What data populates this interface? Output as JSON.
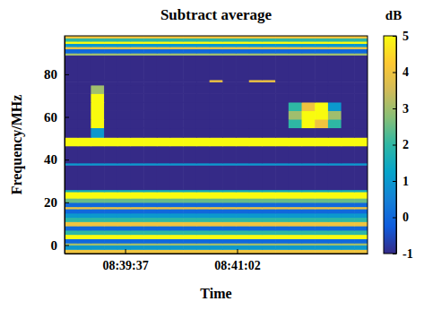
{
  "chart_data": {
    "type": "heatmap",
    "title": "Subtract average",
    "xlabel": "Time",
    "ylabel": "Frequency/MHz",
    "xlim": [
      "08:38:51",
      "08:42:41"
    ],
    "xticks": [
      "08:39:37",
      "08:41:02"
    ],
    "ylim": [
      -4,
      98
    ],
    "yticks": [
      0,
      20,
      40,
      60,
      80
    ],
    "x": [
      "08:38:51",
      "08:39:01",
      "08:39:11",
      "08:39:21",
      "08:39:31",
      "08:39:41",
      "08:39:51",
      "08:40:01",
      "08:40:11",
      "08:40:21",
      "08:40:31",
      "08:40:41",
      "08:40:51",
      "08:41:01",
      "08:41:11",
      "08:41:21",
      "08:41:31",
      "08:41:41",
      "08:41:51",
      "08:42:01",
      "08:42:11",
      "08:42:21",
      "08:42:31"
    ],
    "y": [
      -4,
      -2,
      0,
      1,
      3,
      5,
      7,
      9,
      11,
      13,
      15,
      17,
      18,
      20,
      22,
      25,
      26,
      37.5,
      38.5,
      46.5,
      50.5,
      55,
      59,
      63,
      67,
      71,
      75,
      76.5,
      77.5,
      89,
      90,
      92,
      93,
      94.5,
      95.5,
      97
    ],
    "cells": [
      [
        4,
        4,
        4,
        4,
        4,
        4,
        4,
        4,
        4,
        4,
        4,
        4,
        4,
        4,
        4,
        4,
        4,
        4,
        4,
        4,
        4,
        4,
        4
      ],
      [
        1,
        1,
        1,
        1,
        1,
        1,
        1,
        1,
        1,
        1,
        1,
        1,
        1,
        1,
        1,
        1,
        1,
        1,
        1,
        1,
        1,
        1,
        1
      ],
      [
        3,
        3,
        3,
        3,
        3,
        3,
        3,
        3,
        3,
        3,
        3,
        3,
        3,
        3,
        3,
        3,
        3,
        3,
        3,
        3,
        3,
        3,
        3
      ],
      [
        0,
        0,
        0,
        0,
        0,
        0,
        0,
        0,
        0,
        0,
        0,
        0,
        0,
        0,
        0,
        0,
        0,
        0,
        0,
        0,
        0,
        0,
        0
      ],
      [
        5,
        5,
        5,
        5,
        5,
        5,
        5,
        5,
        5,
        5,
        5,
        5,
        5,
        5,
        5,
        5,
        5,
        5,
        5,
        5,
        5,
        5,
        5
      ],
      [
        2,
        2,
        2,
        2,
        2,
        2,
        2,
        2,
        2,
        2,
        2,
        2,
        2,
        2,
        2,
        2,
        2,
        2,
        2,
        2,
        2,
        2,
        2
      ],
      [
        0,
        0,
        0,
        0,
        0,
        0,
        0,
        0,
        0,
        0,
        0,
        0,
        0,
        0,
        0,
        0,
        0,
        0,
        0,
        0,
        0,
        0,
        0
      ],
      [
        4,
        4,
        4,
        4,
        4,
        4,
        4,
        4,
        4,
        4,
        4,
        4,
        4,
        4,
        4,
        4,
        4,
        4,
        4,
        4,
        4,
        4,
        4
      ],
      [
        2,
        2,
        2,
        2,
        2,
        2,
        2,
        2,
        2,
        2,
        2,
        2,
        2,
        2,
        2,
        2,
        2,
        2,
        2,
        2,
        2,
        2,
        2
      ],
      [
        1,
        1,
        1,
        1,
        1,
        1,
        1,
        1,
        1,
        1,
        1,
        1,
        1,
        1,
        1,
        1,
        1,
        1,
        1,
        1,
        1,
        1,
        1
      ],
      [
        0,
        0,
        0,
        0,
        0,
        0,
        0,
        0,
        0,
        0,
        0,
        0,
        0,
        0,
        0,
        0,
        0,
        0,
        0,
        0,
        0,
        0,
        0
      ],
      [
        4,
        4,
        4,
        4,
        4,
        4,
        4,
        4,
        4,
        4,
        4,
        4,
        4,
        4,
        4,
        4,
        4,
        4,
        4,
        4,
        4,
        4,
        4
      ],
      [
        0,
        0,
        0,
        0,
        0,
        0,
        0,
        0,
        0,
        0,
        0,
        0,
        0,
        0,
        0,
        0,
        0,
        0,
        0,
        0,
        0,
        0,
        0
      ],
      [
        2.5,
        2.5,
        2.5,
        2.5,
        2.5,
        2.5,
        2.5,
        2.5,
        2.5,
        2.5,
        2.5,
        2.5,
        2.5,
        2.5,
        2.5,
        2.5,
        2.5,
        2.5,
        2.5,
        2.5,
        2.5,
        2.5,
        2.5
      ],
      [
        5,
        5,
        5,
        5,
        5,
        5,
        5,
        5,
        5,
        5,
        5,
        5,
        5,
        5,
        5,
        5,
        5,
        5,
        5,
        5,
        5,
        5,
        5
      ],
      [
        1.5,
        1.5,
        1.5,
        1.5,
        1.5,
        1.5,
        1.5,
        1.5,
        1.5,
        1.5,
        1.5,
        1.5,
        1.5,
        1.5,
        1.5,
        1.5,
        1.5,
        1.5,
        1.5,
        1.5,
        1.5,
        1.5,
        1.5
      ],
      [
        -1,
        -1,
        -1,
        -1,
        -1,
        -1,
        -1,
        -1,
        -1,
        -1,
        -1,
        -1,
        -1,
        -1,
        -1,
        -1,
        -1,
        -1,
        -1,
        -1,
        -1,
        -1,
        -1
      ],
      [
        1,
        1,
        1,
        1,
        1,
        1,
        1,
        1,
        1,
        1,
        1,
        1,
        1,
        1,
        1,
        1,
        1,
        1,
        1,
        1,
        1,
        1,
        1
      ],
      [
        -1,
        -1,
        -1,
        -1,
        -1,
        -1,
        -1,
        -1,
        -1,
        -1,
        -1,
        -1,
        -1,
        -1,
        -1,
        -1,
        -1,
        -1,
        -1,
        -1,
        -1,
        -1,
        -1
      ],
      [
        5,
        5,
        5,
        5,
        5,
        5,
        5,
        5,
        5,
        5,
        5,
        5,
        5,
        5,
        5,
        5,
        5,
        5,
        5,
        5,
        5,
        5,
        5
      ],
      [
        -1,
        -1,
        1,
        -1,
        -1,
        -1,
        -1,
        -1,
        -1,
        -1,
        -1,
        -1,
        -1,
        -1,
        -1,
        -1,
        -1,
        -1,
        -1,
        -1,
        -1,
        -1,
        -1
      ],
      [
        -1,
        -1,
        5,
        -1,
        -1,
        -1,
        -1,
        -1,
        -1,
        -1,
        -1,
        -1,
        -1,
        -1,
        -1,
        -1,
        -1,
        2,
        5,
        4,
        2,
        -1,
        -1
      ],
      [
        -1,
        -1,
        5,
        -1,
        -1,
        -1,
        -1,
        -1,
        -1,
        -1,
        -1,
        -1,
        -1,
        -1,
        -1,
        -1,
        -1,
        3,
        5,
        5,
        3,
        -1,
        -1
      ],
      [
        -1,
        -1,
        5,
        -1,
        -1,
        -1,
        -1,
        -1,
        -1,
        -1,
        -1,
        -1,
        -1,
        -1,
        -1,
        -1,
        -1,
        2,
        4,
        5,
        1,
        -1,
        -1
      ],
      [
        -1,
        -1,
        5,
        -1,
        -1,
        -1,
        -1,
        -1,
        -1,
        -1,
        -1,
        -1,
        -1,
        -1,
        -1,
        -1,
        -1,
        -1,
        -1,
        -1,
        -1,
        -1,
        -1
      ],
      [
        -1,
        -1,
        3,
        -1,
        -1,
        -1,
        -1,
        -1,
        -1,
        -1,
        -1,
        -1,
        -1,
        -1,
        -1,
        -1,
        -1,
        -1,
        -1,
        -1,
        -1,
        -1,
        -1
      ],
      [
        -1,
        -1,
        -1,
        -1,
        -1,
        -1,
        -1,
        -1,
        -1,
        -1,
        -1,
        -1,
        -1,
        -1,
        -1,
        -1,
        -1,
        -1,
        -1,
        -1,
        -1,
        -1,
        -1
      ],
      [
        -1,
        -1,
        -1,
        -1,
        -1,
        -1,
        -1,
        -1,
        -1,
        -1,
        -1,
        4,
        -1,
        -1,
        4,
        4,
        -1,
        -1,
        -1,
        -1,
        -1,
        -1,
        -1
      ],
      [
        -1,
        -1,
        -1,
        -1,
        -1,
        -1,
        -1,
        -1,
        -1,
        -1,
        -1,
        -1,
        -1,
        -1,
        -1,
        -1,
        -1,
        -1,
        -1,
        -1,
        -1,
        -1,
        -1
      ],
      [
        3,
        3,
        3,
        3,
        3,
        3,
        3,
        3,
        3,
        3,
        3,
        3,
        3,
        3,
        3,
        3,
        3,
        3,
        3,
        3,
        3,
        3,
        3
      ],
      [
        0,
        0,
        0,
        0,
        0,
        0,
        0,
        0,
        0,
        0,
        0,
        0,
        0,
        0,
        0,
        0,
        0,
        0,
        0,
        0,
        0,
        0,
        0
      ],
      [
        4,
        4,
        4,
        4,
        4,
        4,
        4,
        4,
        4,
        4,
        4,
        4,
        4,
        4,
        4,
        4,
        4,
        4,
        4,
        4,
        4,
        4,
        4
      ],
      [
        1,
        1,
        1,
        1,
        1,
        1,
        1,
        1,
        1,
        1,
        1,
        1,
        1,
        1,
        1,
        1,
        1,
        1,
        1,
        1,
        1,
        1,
        1
      ],
      [
        5,
        5,
        5,
        5,
        5,
        5,
        5,
        5,
        5,
        5,
        5,
        5,
        5,
        5,
        5,
        5,
        5,
        5,
        5,
        5,
        5,
        5,
        5
      ],
      [
        2,
        2,
        2,
        2,
        2,
        2,
        2,
        2,
        2,
        2,
        2,
        2,
        2,
        2,
        2,
        2,
        2,
        2,
        2,
        2,
        2,
        2,
        2
      ],
      [
        4,
        4,
        4,
        4,
        4,
        4,
        4,
        4,
        4,
        4,
        4,
        4,
        4,
        4,
        4,
        4,
        4,
        4,
        4,
        4,
        4,
        4,
        4
      ]
    ],
    "colorbar": {
      "label": "dB",
      "lim": [
        -1,
        5
      ],
      "ticks": [
        -1,
        0,
        1,
        2,
        3,
        4,
        5
      ]
    }
  }
}
